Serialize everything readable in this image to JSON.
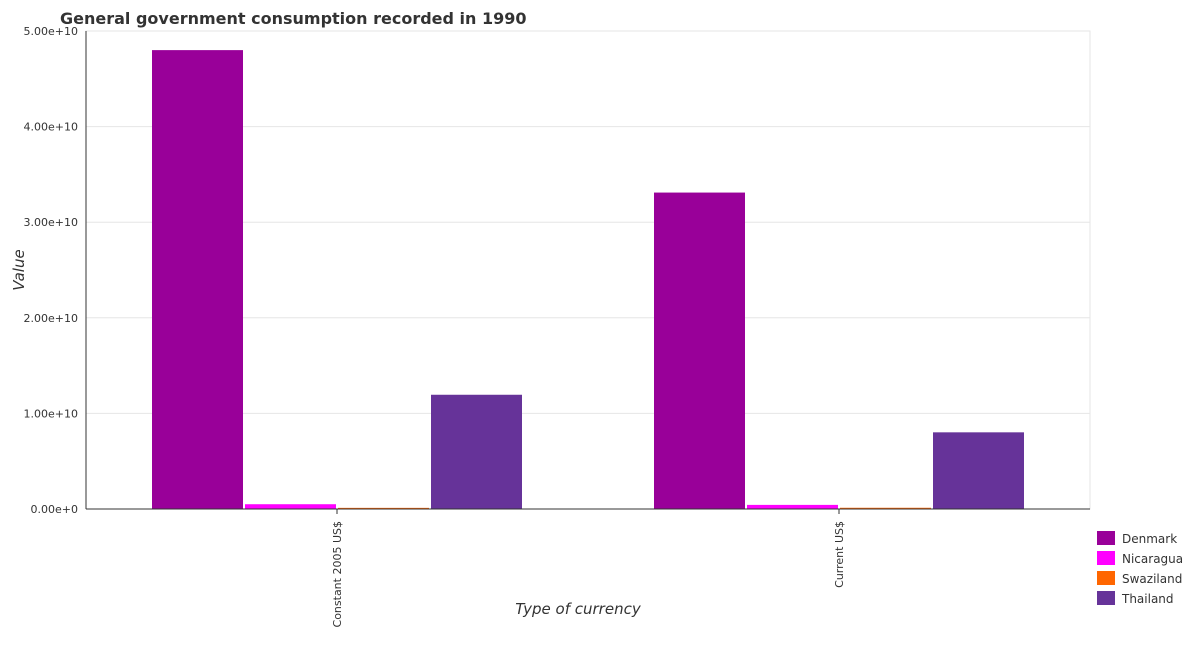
{
  "chart_data": {
    "type": "bar",
    "title": "General government consumption recorded in 1990",
    "xlabel": "Type of currency",
    "ylabel": "Value",
    "categories": [
      "Constant 2005 US$",
      "Current US$"
    ],
    "series": [
      {
        "name": "Denmark",
        "color": "#990099",
        "values": [
          48000000000.0,
          33100000000.0
        ]
      },
      {
        "name": "Nicaragua",
        "color": "#ff00ff",
        "values": [
          500000000.0,
          430000000.0
        ]
      },
      {
        "name": "Swaziland",
        "color": "#ff6600",
        "values": [
          120000000.0,
          130000000.0
        ]
      },
      {
        "name": "Thailand",
        "color": "#663399",
        "values": [
          11950000000.0,
          8020000000.0
        ]
      }
    ],
    "ylim": [
      0,
      50000000000.0
    ],
    "yticks": [
      0,
      10000000000.0,
      20000000000.0,
      30000000000.0,
      40000000000.0,
      50000000000.0
    ],
    "ytick_labels": [
      "0.00e+0",
      "1.00e+10",
      "2.00e+10",
      "3.00e+10",
      "4.00e+10",
      "5.00e+10"
    ],
    "grid": true,
    "legend_position": "bottom-right"
  }
}
